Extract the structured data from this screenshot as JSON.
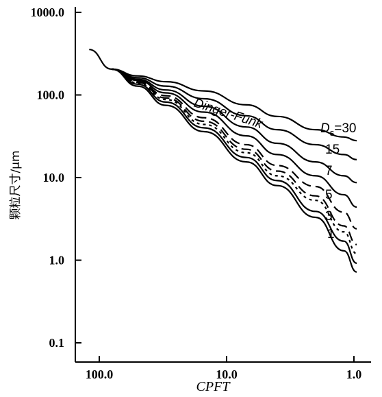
{
  "chart_data": {
    "type": "line",
    "xlabel": "CPFT",
    "ylabel": "颗粒尺寸/μm",
    "x_scale": "log",
    "x_reversed": true,
    "y_scale": "log",
    "xlim": [
      100,
      0.9
    ],
    "ylim": [
      0.1,
      1000
    ],
    "x_ticks": [
      {
        "value": 100,
        "label": "100.0"
      },
      {
        "value": 10,
        "label": "10.0"
      },
      {
        "value": 1,
        "label": "1.0"
      }
    ],
    "y_ticks": [
      {
        "value": 1000,
        "label": "1000.0"
      },
      {
        "value": 100,
        "label": "100.0"
      },
      {
        "value": 10,
        "label": "10.0"
      },
      {
        "value": 1,
        "label": "1.0"
      },
      {
        "value": 0.1,
        "label": "0.1"
      }
    ],
    "grid": false,
    "legend": "none",
    "series": [
      {
        "name": "",
        "style": "solid",
        "x": [
          120,
          80,
          50,
          30,
          15,
          7,
          4,
          2,
          1.2,
          0.95
        ],
        "y": [
          355,
          205,
          128,
          75,
          36,
          15.5,
          8,
          3.3,
          1.3,
          0.72
        ]
      },
      {
        "name": "",
        "style": "solid",
        "x": [
          80,
          50,
          30,
          15,
          7,
          4,
          2,
          1.2,
          0.95
        ],
        "y": [
          205,
          135,
          82,
          40,
          17.5,
          9.2,
          3.9,
          1.7,
          0.92
        ]
      },
      {
        "name": "1",
        "style": "dotted",
        "x": [
          80,
          50,
          30,
          15,
          7,
          4,
          2,
          1.2,
          0.95
        ],
        "y": [
          205,
          140,
          88,
          44,
          20,
          10.5,
          5.3,
          2.2,
          1.2
        ]
      },
      {
        "name": "",
        "style": "dashed",
        "x": [
          80,
          50,
          30,
          15,
          7,
          4,
          2,
          1.2,
          0.95
        ],
        "y": [
          205,
          142,
          92,
          48,
          22,
          12,
          6,
          2.6,
          1.55
        ]
      },
      {
        "name": "3",
        "style": "dashed",
        "x": [
          80,
          50,
          30,
          15,
          7,
          4,
          2,
          1.2,
          0.95
        ],
        "y": [
          205,
          145,
          98,
          53,
          25,
          14,
          7.8,
          3.8,
          2.4
        ]
      },
      {
        "name": "5",
        "style": "solid",
        "x": [
          80,
          50,
          30,
          15,
          7,
          4,
          2,
          1.2,
          0.95
        ],
        "y": [
          205,
          150,
          106,
          62,
          32,
          19,
          10.5,
          6.2,
          4.4
        ]
      },
      {
        "name": "7",
        "style": "solid",
        "x": [
          80,
          50,
          30,
          15,
          7,
          4,
          2,
          1.2,
          0.95
        ],
        "y": [
          205,
          155,
          115,
          73,
          41,
          26,
          15.5,
          10.5,
          8.7
        ]
      },
      {
        "name": "15",
        "style": "solid",
        "x": [
          80,
          50,
          30,
          15,
          7,
          4,
          2,
          1.2,
          0.95
        ],
        "y": [
          205,
          162,
          128,
          90,
          56,
          38,
          25,
          19,
          16.5
        ]
      },
      {
        "name": "Dinger-Funk",
        "style": "solid",
        "x": [
          80,
          50,
          30,
          15,
          7,
          4,
          2,
          1.2,
          0.95
        ],
        "y": [
          205,
          170,
          145,
          112,
          76,
          55,
          38,
          31,
          28
        ]
      }
    ],
    "annotations": [
      {
        "text": "Dinger-Funk"
      },
      {
        "text": "D",
        "subscript": "s",
        "suffix": "=30"
      },
      {
        "text": "15"
      },
      {
        "text": "7"
      },
      {
        "text": "5"
      },
      {
        "text": "3"
      },
      {
        "text": "1"
      }
    ]
  }
}
